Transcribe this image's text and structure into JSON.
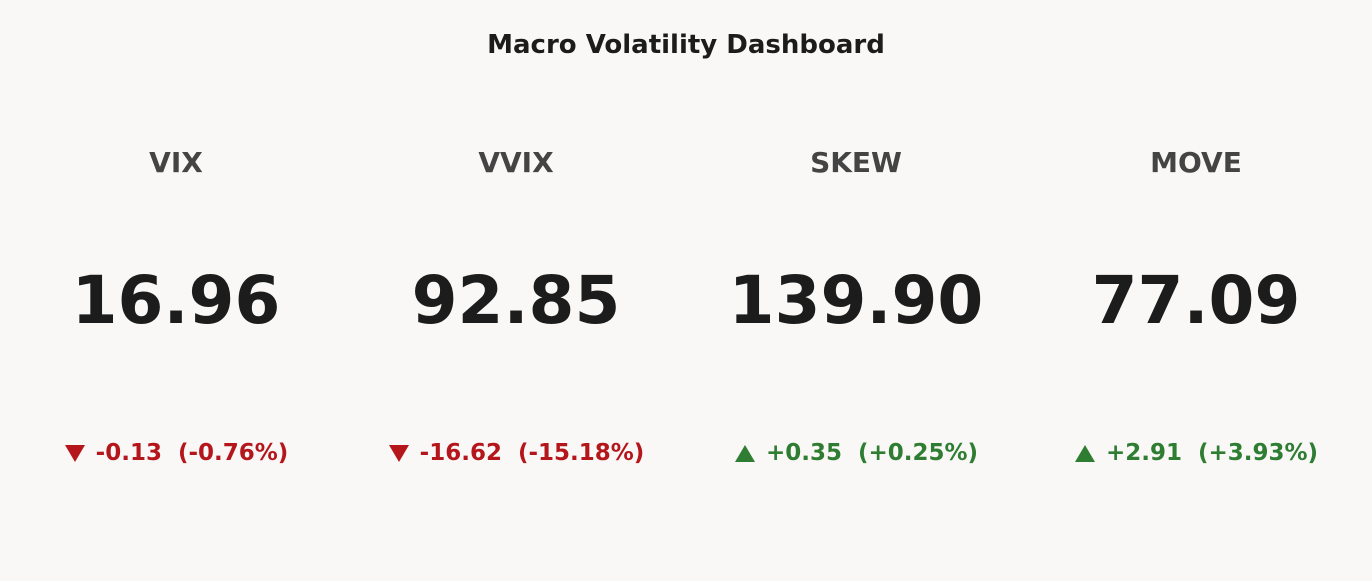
{
  "header": {
    "title": "Macro Volatility Dashboard"
  },
  "cards": [
    {
      "label": "VIX",
      "value": "16.96",
      "change": "-0.13",
      "change_pct": "(-0.76%)",
      "color": "#b5161b"
    },
    {
      "label": "VVIX",
      "value": "92.85",
      "change": "-16.62",
      "change_pct": "(-15.18%)",
      "color": "#b5161b"
    },
    {
      "label": "SKEW",
      "value": "139.90",
      "change": "+0.35",
      "change_pct": "(+0.25%)",
      "color": "#2e7d32"
    },
    {
      "label": "MOVE",
      "value": "77.09",
      "change": "+2.91",
      "change_pct": "(+3.93%)",
      "color": "#2e7d32"
    }
  ]
}
